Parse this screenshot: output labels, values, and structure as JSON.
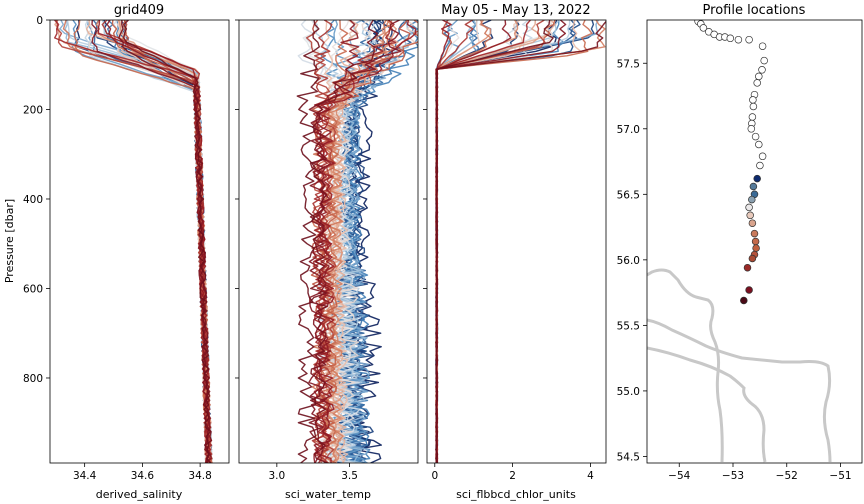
{
  "chart_data": [
    {
      "type": "line",
      "panel": "salinity",
      "title": "grid409",
      "xlabel": "derived_salinity",
      "ylabel": "Pressure [dbar]",
      "xlim": [
        34.28,
        34.9
      ],
      "ylim": [
        990,
        0
      ],
      "xticks": [
        34.4,
        34.6,
        34.8
      ],
      "xtick_labels": [
        "34.4",
        "34.6",
        "34.8"
      ],
      "yticks": [
        0,
        200,
        400,
        600,
        800
      ],
      "ytick_labels": [
        "0",
        "200",
        "400",
        "600",
        "800"
      ],
      "series_summary": {
        "n_profiles": 40,
        "surface_value_range": [
          34.3,
          34.55
        ],
        "deep_value": 34.82,
        "mixed_layer_depth_range": [
          30,
          80
        ]
      }
    },
    {
      "type": "line",
      "panel": "temperature",
      "title": "",
      "xlabel": "sci_water_temp",
      "xlim": [
        2.74,
        3.97
      ],
      "ylim": [
        990,
        0
      ],
      "xticks": [
        3.0,
        3.5
      ],
      "xtick_labels": [
        "3.0",
        "3.5"
      ],
      "series_summary": {
        "n_profiles": 40,
        "surface_value_range": [
          3.2,
          3.97
        ],
        "deep_value_range": [
          3.25,
          3.62
        ]
      }
    },
    {
      "type": "line",
      "panel": "chlorophyll",
      "title": "May 05 - May 13, 2022",
      "xlabel": "sci_flbbcd_chlor_units",
      "xlim": [
        -0.2,
        4.4
      ],
      "ylim": [
        990,
        0
      ],
      "xticks": [
        0,
        2,
        4
      ],
      "xtick_labels": [
        "0",
        "2",
        "4"
      ],
      "series_summary": {
        "n_profiles": 40,
        "surface_value_range": [
          0.3,
          4.3
        ],
        "deep_value": 0.05,
        "bloom_depth_range": [
          0,
          100
        ]
      }
    },
    {
      "type": "scatter",
      "panel": "map",
      "title": "Profile locations",
      "xlim": [
        -54.6,
        -50.6
      ],
      "ylim": [
        54.45,
        57.83
      ],
      "xticks": [
        -54,
        -53,
        -52,
        -51
      ],
      "xtick_labels": [
        "−54",
        "−53",
        "−52",
        "−51"
      ],
      "yticks": [
        54.5,
        55.0,
        55.5,
        56.0,
        56.5,
        57.0,
        57.5
      ],
      "ytick_labels": [
        "54.5",
        "55.0",
        "55.5",
        "56.0",
        "56.5",
        "57.0",
        "57.5"
      ],
      "points": [
        {
          "lon": -53.65,
          "lat": 57.82,
          "c": "#ffffff"
        },
        {
          "lon": -53.6,
          "lat": 57.8,
          "c": "#ffffff"
        },
        {
          "lon": -53.55,
          "lat": 57.77,
          "c": "#ffffff"
        },
        {
          "lon": -53.45,
          "lat": 57.74,
          "c": "#ffffff"
        },
        {
          "lon": -53.35,
          "lat": 57.72,
          "c": "#ffffff"
        },
        {
          "lon": -53.25,
          "lat": 57.7,
          "c": "#ffffff"
        },
        {
          "lon": -53.15,
          "lat": 57.7,
          "c": "#ffffff"
        },
        {
          "lon": -53.05,
          "lat": 57.69,
          "c": "#ffffff"
        },
        {
          "lon": -52.9,
          "lat": 57.68,
          "c": "#ffffff"
        },
        {
          "lon": -52.7,
          "lat": 57.68,
          "c": "#ffffff"
        },
        {
          "lon": -52.45,
          "lat": 57.63,
          "c": "#ffffff"
        },
        {
          "lon": -52.42,
          "lat": 57.52,
          "c": "#ffffff"
        },
        {
          "lon": -52.46,
          "lat": 57.45,
          "c": "#ffffff"
        },
        {
          "lon": -52.52,
          "lat": 57.4,
          "c": "#ffffff"
        },
        {
          "lon": -52.55,
          "lat": 57.35,
          "c": "#ffffff"
        },
        {
          "lon": -52.6,
          "lat": 57.26,
          "c": "#ffffff"
        },
        {
          "lon": -52.63,
          "lat": 57.22,
          "c": "#ffffff"
        },
        {
          "lon": -52.62,
          "lat": 57.17,
          "c": "#ffffff"
        },
        {
          "lon": -52.64,
          "lat": 57.09,
          "c": "#ffffff"
        },
        {
          "lon": -52.65,
          "lat": 57.04,
          "c": "#ffffff"
        },
        {
          "lon": -52.66,
          "lat": 57.0,
          "c": "#ffffff"
        },
        {
          "lon": -52.58,
          "lat": 56.94,
          "c": "#ffffff"
        },
        {
          "lon": -52.52,
          "lat": 56.88,
          "c": "#ffffff"
        },
        {
          "lon": -52.45,
          "lat": 56.79,
          "c": "#ffffff"
        },
        {
          "lon": -52.5,
          "lat": 56.72,
          "c": "#ffffff"
        },
        {
          "lon": -52.55,
          "lat": 56.62,
          "c": "#0d2a6e"
        },
        {
          "lon": -52.62,
          "lat": 56.56,
          "c": "#557a9a"
        },
        {
          "lon": -52.6,
          "lat": 56.5,
          "c": "#3a6a96"
        },
        {
          "lon": -52.65,
          "lat": 56.46,
          "c": "#8aa0b0"
        },
        {
          "lon": -52.7,
          "lat": 56.4,
          "c": "#ebe9ea"
        },
        {
          "lon": -52.68,
          "lat": 56.34,
          "c": "#e9cbbd"
        },
        {
          "lon": -52.64,
          "lat": 56.28,
          "c": "#d9a48d"
        },
        {
          "lon": -52.6,
          "lat": 56.2,
          "c": "#c97a5c"
        },
        {
          "lon": -52.58,
          "lat": 56.14,
          "c": "#c46a4a"
        },
        {
          "lon": -52.57,
          "lat": 56.09,
          "c": "#c0603e"
        },
        {
          "lon": -52.6,
          "lat": 56.04,
          "c": "#b5523a"
        },
        {
          "lon": -52.64,
          "lat": 56.01,
          "c": "#a84a33"
        },
        {
          "lon": -52.73,
          "lat": 55.94,
          "c": "#9a2a28"
        },
        {
          "lon": -52.7,
          "lat": 55.77,
          "c": "#7a1020"
        },
        {
          "lon": -52.8,
          "lat": 55.69,
          "c": "#4a0a16"
        }
      ]
    }
  ]
}
